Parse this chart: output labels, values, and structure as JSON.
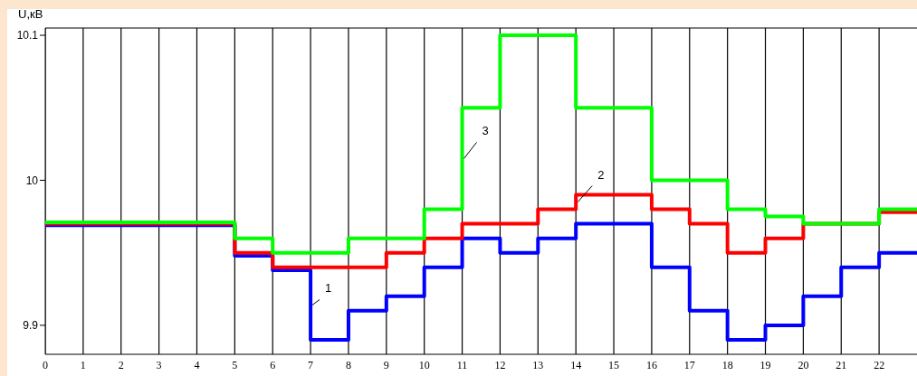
{
  "chart_data": {
    "type": "step",
    "ylabel": "U,кВ",
    "x": [
      0,
      1,
      2,
      3,
      4,
      5,
      6,
      7,
      8,
      9,
      10,
      11,
      12,
      13,
      14,
      15,
      16,
      17,
      18,
      19,
      20,
      21,
      22,
      23
    ],
    "series": [
      {
        "name": "1",
        "color": "#0000ff",
        "values": [
          9.969,
          9.969,
          9.969,
          9.969,
          9.969,
          9.948,
          9.938,
          9.89,
          9.91,
          9.92,
          9.94,
          9.96,
          9.95,
          9.96,
          9.97,
          9.97,
          9.94,
          9.91,
          9.89,
          9.9,
          9.92,
          9.94,
          9.95,
          9.95
        ]
      },
      {
        "name": "2",
        "color": "#ff0000",
        "values": [
          9.97,
          9.97,
          9.97,
          9.97,
          9.97,
          9.95,
          9.94,
          9.94,
          9.94,
          9.95,
          9.96,
          9.97,
          9.97,
          9.98,
          9.99,
          9.99,
          9.98,
          9.97,
          9.95,
          9.96,
          9.97,
          9.97,
          9.978,
          9.978
        ]
      },
      {
        "name": "3",
        "color": "#00ff00",
        "values": [
          9.971,
          9.971,
          9.971,
          9.971,
          9.971,
          9.96,
          9.95,
          9.95,
          9.96,
          9.96,
          9.98,
          10.05,
          10.1,
          10.1,
          10.05,
          10.05,
          10.0,
          10.0,
          9.98,
          9.975,
          9.97,
          9.97,
          9.98,
          9.98
        ]
      }
    ],
    "xlim": [
      0,
      23
    ],
    "xticks": [
      0,
      1,
      2,
      3,
      4,
      5,
      6,
      7,
      8,
      9,
      10,
      11,
      12,
      13,
      14,
      15,
      16,
      17,
      18,
      19,
      20,
      21,
      22
    ],
    "ylim": [
      9.88,
      10.105
    ],
    "yticks": [
      9.9,
      10,
      10.1
    ],
    "grid": "x",
    "line_style": "solid"
  }
}
